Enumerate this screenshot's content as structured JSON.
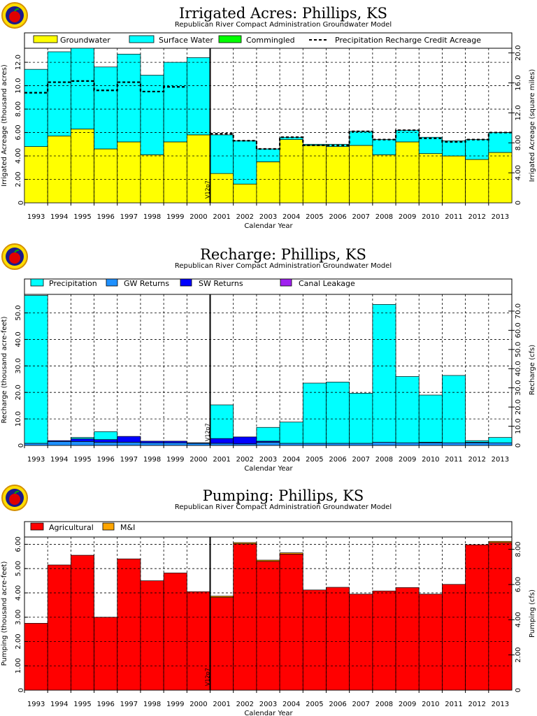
{
  "logo_icon": "apple-logo-icon",
  "chart_data": [
    {
      "type": "bar",
      "stacked": true,
      "title": "Irrigated  Acres:  Phillips,  KS",
      "subtitle": "Republican  River  Compact  Administration  Groundwater  Model",
      "xlabel": "Calendar  Year",
      "ylabel": "Irrigated  Acreage  (thousand  acres)",
      "y2label": "Irrigated  Acreage  (square  miles)",
      "categories": [
        "1993",
        "1994",
        "1995",
        "1996",
        "1997",
        "1998",
        "1999",
        "2000",
        "2001",
        "2002",
        "2003",
        "2004",
        "2005",
        "2006",
        "2007",
        "2008",
        "2009",
        "2010",
        "2011",
        "2012",
        "2013"
      ],
      "ylim": [
        0,
        13.2
      ],
      "yticks": [
        2,
        4,
        6,
        8,
        10,
        12
      ],
      "ytick_labels": [
        "2.00",
        "4.00",
        "6.00",
        "8.00",
        "10.0",
        "12.0"
      ],
      "y2lim": [
        0,
        20.625
      ],
      "y2ticks": [
        4,
        8,
        12,
        16,
        20
      ],
      "y2tick_labels": [
        "4.00",
        "8.00",
        "12.0",
        "16.0",
        "20.0"
      ],
      "y2tick_zero": "0",
      "ytick_zero": "0",
      "marker_year": "2001",
      "marker_label": "V12p7",
      "legend": [
        "Groundwater",
        "Surface  Water",
        "Commingled",
        "Precipitation  Recharge  Credit  Acreage"
      ],
      "series": [
        {
          "name": "Groundwater",
          "color": "#ffff00",
          "values": [
            4.8,
            5.7,
            6.3,
            4.6,
            5.2,
            4.1,
            5.2,
            5.8,
            2.5,
            1.6,
            3.5,
            5.4,
            4.9,
            4.8,
            4.9,
            4.1,
            5.2,
            4.2,
            4.0,
            3.7,
            4.3
          ]
        },
        {
          "name": "Surface  Water",
          "color": "#00ffff",
          "values": [
            6.6,
            7.2,
            6.9,
            7.0,
            7.5,
            6.8,
            6.8,
            6.6,
            3.3,
            3.7,
            1.1,
            0.2,
            0.1,
            0.2,
            1.2,
            1.3,
            1.0,
            1.4,
            1.3,
            1.7,
            1.7
          ]
        },
        {
          "name": "Commingled",
          "color": "#00ff00",
          "values": [
            0,
            0,
            0,
            0,
            0,
            0,
            0,
            0,
            0,
            0,
            0,
            0,
            0,
            0,
            0,
            0,
            0,
            0,
            0,
            0,
            0
          ]
        }
      ],
      "line": {
        "name": "Precipitation  Recharge  Credit  Acreage",
        "values": [
          9.4,
          10.3,
          10.4,
          9.6,
          10.3,
          9.5,
          9.9,
          null,
          5.9,
          5.3,
          4.6,
          5.6,
          4.9,
          4.9,
          6.1,
          5.4,
          6.2,
          5.5,
          5.2,
          5.4,
          6.0
        ]
      }
    },
    {
      "type": "bar",
      "stacked": true,
      "title": "Recharge:  Phillips,  KS",
      "subtitle": "Republican  River  Compact  Administration  Groundwater  Model",
      "xlabel": "Calendar  Year",
      "ylabel": "Recharge  (thousand  acre-feet)",
      "y2label": "Recharge  (cfs)",
      "categories": [
        "1993",
        "1994",
        "1995",
        "1996",
        "1997",
        "1998",
        "1999",
        "2000",
        "2001",
        "2002",
        "2003",
        "2004",
        "2005",
        "2006",
        "2007",
        "2008",
        "2009",
        "2010",
        "2011",
        "2012",
        "2013"
      ],
      "ylim": [
        0,
        57
      ],
      "yticks": [
        10,
        20,
        30,
        40,
        50
      ],
      "ytick_labels": [
        "10.0",
        "20.0",
        "30.0",
        "40.0",
        "50.0"
      ],
      "ytick_zero": "0",
      "y2lim": [
        0,
        78.73
      ],
      "y2ticks": [
        10,
        20,
        30,
        40,
        50,
        60,
        70
      ],
      "y2tick_labels": [
        "10.0",
        "20.0",
        "30.0",
        "40.0",
        "50.0",
        "60.0",
        "70.0"
      ],
      "y2tick_zero": "0",
      "marker_year": "2001",
      "marker_label": "V12p7",
      "legend": [
        "Precipitation",
        "GW  Returns",
        "SW  Returns",
        "Canal  Leakage"
      ],
      "series": [
        {
          "name": "GW  Returns",
          "color": "#1e90ff",
          "values": [
            0.8,
            1.5,
            1.5,
            1.2,
            1.2,
            1.0,
            1.0,
            0.8,
            0.8,
            0.6,
            1.2,
            0.8,
            0.8,
            0.8,
            0.8,
            1.2,
            1.0,
            1.0,
            1.0,
            1.0,
            1.0
          ]
        },
        {
          "name": "SW  Returns",
          "color": "#0000ff",
          "values": [
            0,
            0.3,
            1.0,
            1.0,
            2.2,
            0.6,
            0.6,
            0.2,
            1.8,
            2.6,
            0.4,
            0,
            0,
            0,
            0,
            0,
            0,
            0.2,
            0,
            0.2,
            0
          ]
        },
        {
          "name": "Precipitation",
          "color": "#00ffff",
          "values": [
            55.8,
            0,
            0.5,
            3.0,
            0,
            0,
            0,
            0,
            12.7,
            0,
            5.2,
            8.0,
            22.7,
            23.1,
            18.9,
            52.0,
            25.0,
            17.8,
            25.4,
            0.6,
            2.0
          ]
        },
        {
          "name": "Canal  Leakage",
          "color": "#a020f0",
          "values": [
            0,
            0,
            0,
            0,
            0,
            0,
            0,
            0,
            0,
            0,
            0,
            0,
            0,
            0,
            0,
            0,
            0,
            0,
            0,
            0,
            0
          ]
        }
      ]
    },
    {
      "type": "bar",
      "stacked": true,
      "title": "Pumping:  Phillips,  KS",
      "subtitle": "Republican  River  Compact  Administration  Groundwater  Model",
      "xlabel": "Calendar  Year",
      "ylabel": "Pumping  (thousand  acre-feet)",
      "y2label": "Pumping  (cfs)",
      "categories": [
        "1993",
        "1994",
        "1995",
        "1996",
        "1997",
        "1998",
        "1999",
        "2000",
        "2001",
        "2002",
        "2003",
        "2004",
        "2005",
        "2006",
        "2007",
        "2008",
        "2009",
        "2010",
        "2011",
        "2012",
        "2013"
      ],
      "ylim": [
        0,
        6.3
      ],
      "yticks": [
        1,
        2,
        3,
        4,
        5,
        6
      ],
      "ytick_labels": [
        "1.00",
        "2.00",
        "3.00",
        "4.00",
        "5.00",
        "6.00"
      ],
      "ytick_zero": "0",
      "y2lim": [
        0,
        8.7
      ],
      "y2ticks": [
        2,
        4,
        6,
        8
      ],
      "y2tick_labels": [
        "2.00",
        "4.00",
        "6.00",
        "8.00"
      ],
      "y2tick_zero": "0",
      "marker_year": "2001",
      "marker_label": "V12p7",
      "legend": [
        "Agricultural",
        "M&I"
      ],
      "series": [
        {
          "name": "Agricultural",
          "color": "#ff0000",
          "values": [
            2.75,
            5.15,
            5.55,
            3.0,
            5.4,
            4.5,
            4.82,
            4.05,
            3.82,
            6.02,
            5.3,
            5.6,
            4.12,
            4.23,
            3.95,
            4.08,
            4.22,
            3.95,
            4.35,
            5.98,
            6.07
          ]
        },
        {
          "name": "M&I",
          "color": "#ffa500",
          "values": [
            0,
            0,
            0,
            0,
            0,
            0,
            0,
            0,
            0.05,
            0.05,
            0.05,
            0.05,
            0,
            0,
            0,
            0,
            0,
            0,
            0,
            0,
            0.05
          ]
        }
      ]
    }
  ]
}
